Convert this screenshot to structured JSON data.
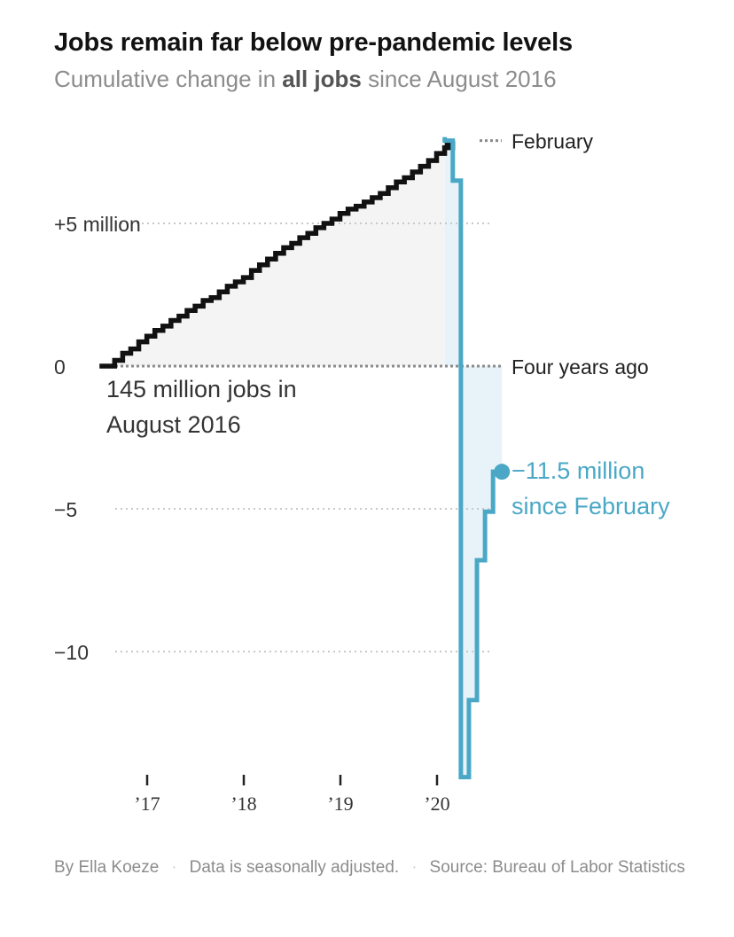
{
  "header": {
    "title": "Jobs remain far below pre-pandemic levels",
    "subtitle_pre": "Cumulative change in ",
    "subtitle_bold": "all jobs",
    "subtitle_post": " since August 2016"
  },
  "footer": {
    "byline": "By Ella Koeze",
    "note": "Data is seasonally adjusted.",
    "source": "Source: Bureau of Labor Statistics"
  },
  "colors": {
    "pre": "#111111",
    "post": "#4aa8c6",
    "pre_fill": "#f4f4f4",
    "post_fill": "#e8f3f9",
    "grid": "#c8c8c8",
    "ref": "#8a8a8a",
    "text": "#333333",
    "accent_text": "#4aa8c6"
  },
  "chart_data": {
    "type": "area",
    "title": "Jobs remain far below pre-pandemic levels",
    "subtitle": "Cumulative change in all jobs since August 2016",
    "units": "million jobs",
    "ylim": [
      -14.5,
      8.5
    ],
    "y_ticks": [
      {
        "value": 5,
        "label": "+5 million"
      },
      {
        "value": 0,
        "label": "0"
      },
      {
        "value": -5,
        "label": "−5"
      },
      {
        "value": -10,
        "label": "−10"
      }
    ],
    "x_ticks": [
      {
        "value": 2017,
        "label": "’17"
      },
      {
        "value": 2018,
        "label": "’18"
      },
      {
        "value": 2019,
        "label": "’19"
      },
      {
        "value": 2020,
        "label": "’20"
      }
    ],
    "xlim": [
      2016.5,
      2021
    ],
    "reference_lines": [
      {
        "name": "february",
        "value": 7.9,
        "label": "February"
      },
      {
        "name": "four-years-ago",
        "value": 0,
        "label": "Four years ago"
      }
    ],
    "series": [
      {
        "name": "Pre-pandemic",
        "start": 2016.58,
        "step": 0.0833,
        "values": [
          0,
          0.2,
          0.45,
          0.6,
          0.85,
          1.05,
          1.25,
          1.4,
          1.6,
          1.75,
          1.95,
          2.1,
          2.3,
          2.4,
          2.6,
          2.8,
          2.95,
          3.1,
          3.35,
          3.55,
          3.75,
          3.95,
          4.15,
          4.3,
          4.5,
          4.65,
          4.85,
          5.0,
          5.15,
          5.35,
          5.5,
          5.6,
          5.75,
          5.9,
          6.05,
          6.25,
          6.45,
          6.6,
          6.8,
          7.0,
          7.2,
          7.45,
          7.65,
          7.8
        ]
      },
      {
        "name": "Since February",
        "start": 2020.08,
        "step": 0.0833,
        "values": [
          7.9,
          6.5,
          -14.4,
          -11.7,
          -6.8,
          -5.1,
          -3.7
        ]
      }
    ],
    "annotations": [
      {
        "name": "baseline-label",
        "lines": [
          "145 million jobs in",
          "August 2016"
        ]
      },
      {
        "name": "latest-value-label",
        "lines": [
          "−11.5 million",
          "since February"
        ],
        "value": -3.7
      }
    ]
  }
}
